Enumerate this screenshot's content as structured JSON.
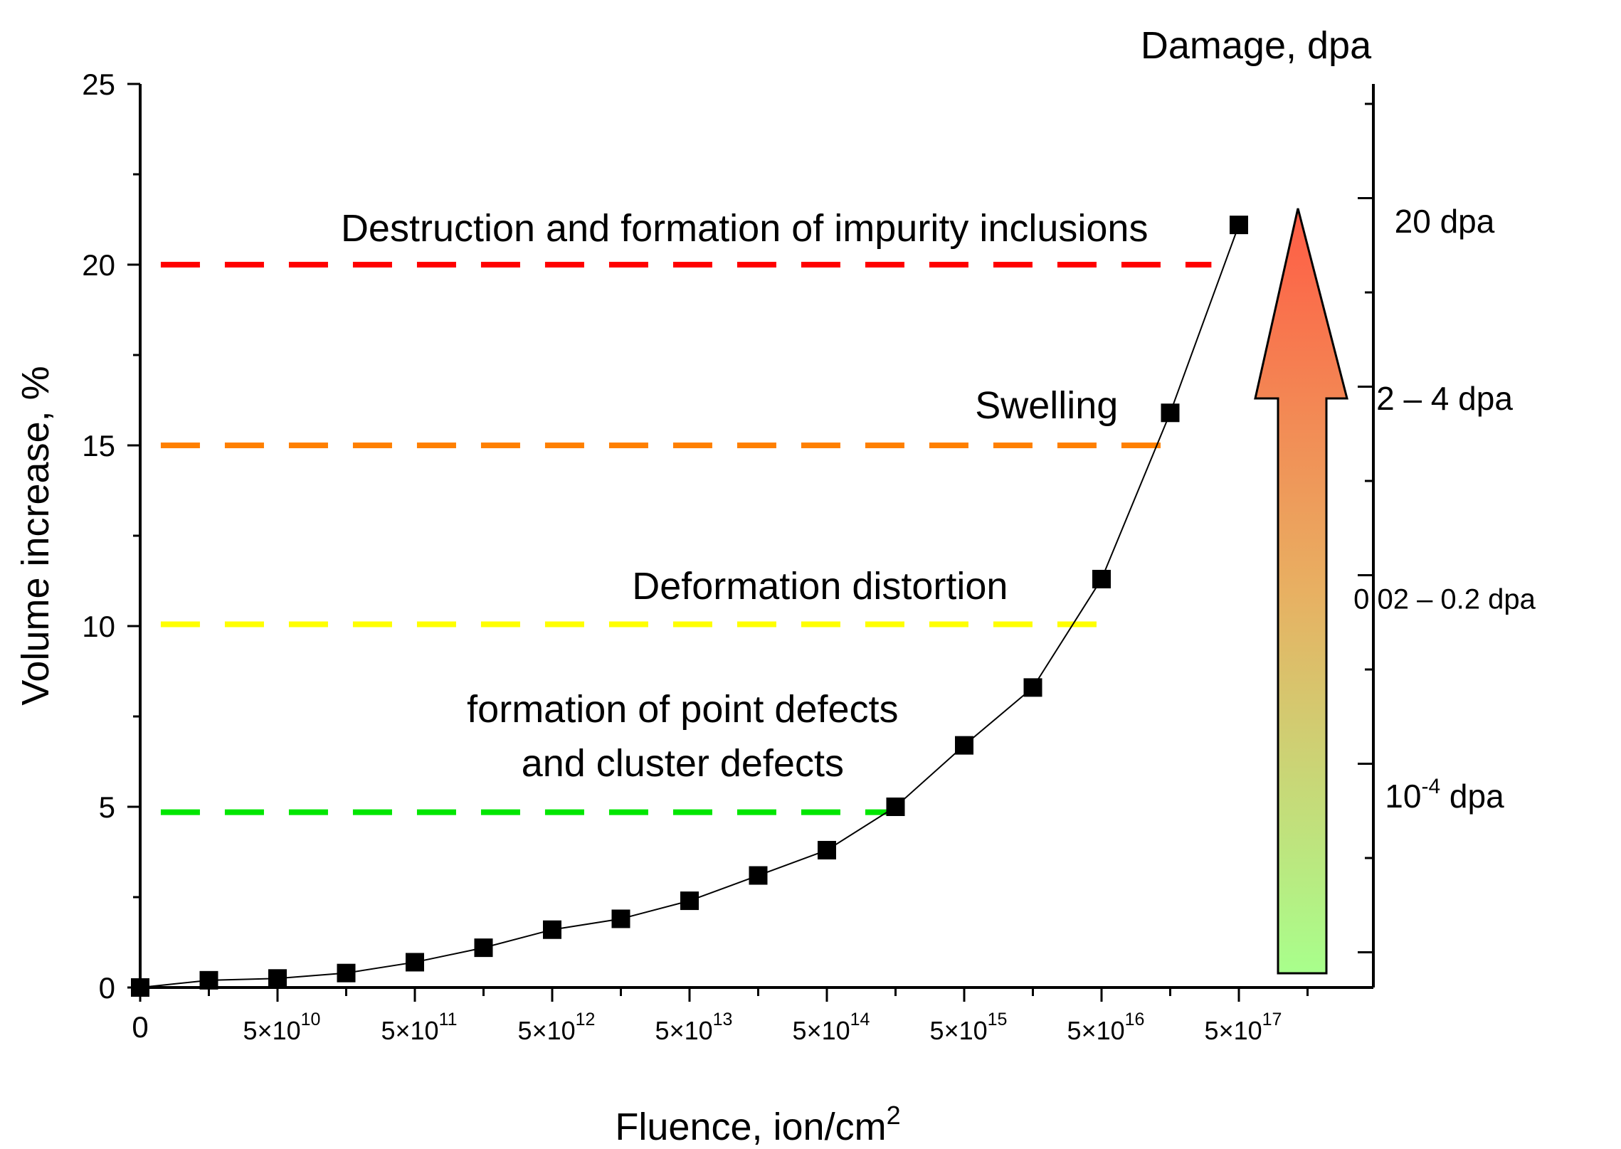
{
  "chart_data": {
    "type": "scatter",
    "xlabel": "Fluence, ion/cm",
    "xlabel_sup": "2",
    "ylabel": "Volume increase, %",
    "right_axis_title": "Damage, dpa",
    "ylim": [
      0,
      25
    ],
    "y_ticks": [
      "0",
      "5",
      "10",
      "15",
      "20",
      "25"
    ],
    "x_positions": [
      0,
      17
    ],
    "x_tick_labels": [
      {
        "pos": 0,
        "label": "0"
      },
      {
        "pos": 2,
        "mant": "5×10",
        "exp": "10"
      },
      {
        "pos": 4,
        "mant": "5×10",
        "exp": "11"
      },
      {
        "pos": 6,
        "mant": "5×10",
        "exp": "12"
      },
      {
        "pos": 8,
        "mant": "5×10",
        "exp": "13"
      },
      {
        "pos": 10,
        "mant": "5×10",
        "exp": "14"
      },
      {
        "pos": 12,
        "mant": "5×10",
        "exp": "15"
      },
      {
        "pos": 14,
        "mant": "5×10",
        "exp": "16"
      },
      {
        "pos": 16,
        "mant": "5×10",
        "exp": "17"
      }
    ],
    "series": [
      {
        "name": "Volume increase",
        "color": "#000000",
        "x": [
          0,
          1,
          2,
          3,
          4,
          5,
          6,
          7,
          8,
          9,
          10,
          11,
          12,
          13,
          14,
          15,
          16
        ],
        "y": [
          0,
          0.2,
          0.25,
          0.4,
          0.7,
          1.1,
          1.6,
          1.9,
          2.4,
          3.1,
          3.8,
          5.0,
          6.7,
          8.3,
          11.3,
          15.9,
          21.1
        ]
      }
    ],
    "threshold_lines": [
      {
        "y": 20.0,
        "x_end": 15.6,
        "color": "#ff0000"
      },
      {
        "y": 15.0,
        "x_end": 15.0,
        "color": "#ff8000"
      },
      {
        "y": 10.05,
        "x_end": 14.0,
        "color": "#ffff00"
      },
      {
        "y": 4.85,
        "x_end": 11.0,
        "color": "#00e600"
      }
    ],
    "annotations": [
      {
        "text": "Destruction and formation of impurity inclusions",
        "x": 8.8,
        "y": 21.0
      },
      {
        "text": "Swelling",
        "x": 13.2,
        "y": 16.1
      },
      {
        "text": "Deformation distortion",
        "x": 9.9,
        "y": 11.1
      },
      {
        "text": "formation of point defects",
        "x": 7.9,
        "y": 7.7
      },
      {
        "text": "and cluster defects",
        "x": 7.9,
        "y": 6.2
      }
    ],
    "dpa_labels": [
      {
        "text": "20 dpa",
        "y": 21.2
      },
      {
        "text": "2 – 4 dpa",
        "y": 16.3
      },
      {
        "text": "0.02 – 0.2 dpa",
        "y": 10.8
      },
      {
        "base": "10",
        "exp": "-4",
        "suffix": " dpa",
        "y": 5.3
      }
    ],
    "arrow_gradient": {
      "top": "#ff5c45",
      "bottom": "#a8ff8c"
    }
  }
}
